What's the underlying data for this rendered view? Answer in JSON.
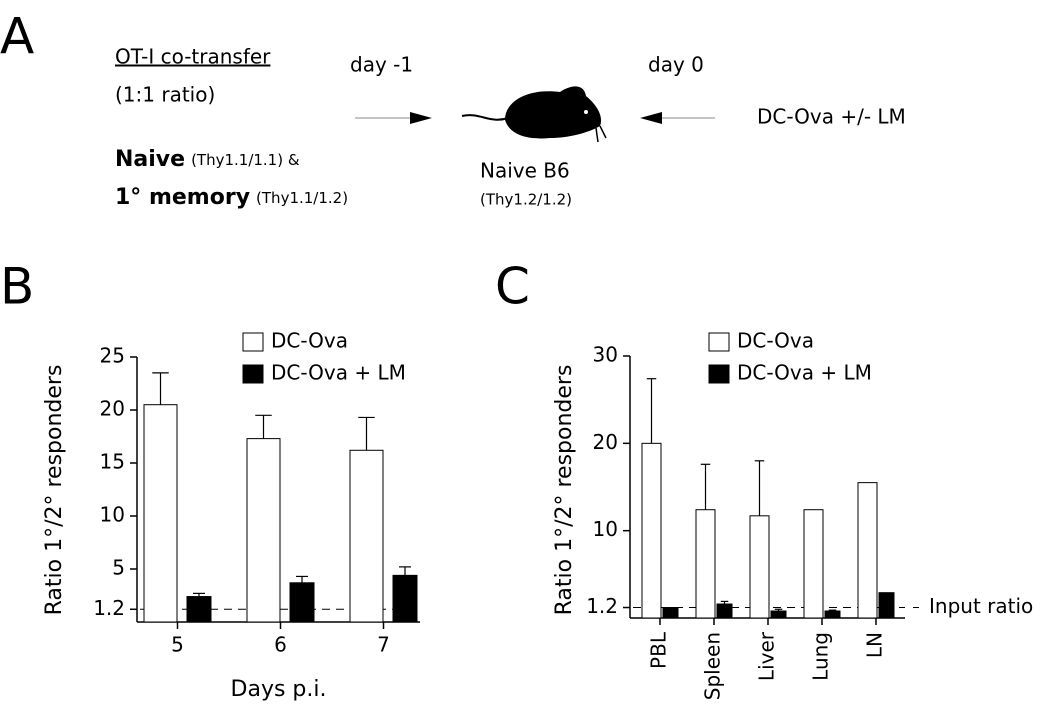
{
  "diagram": {
    "panels": [
      "A",
      "B",
      "C"
    ],
    "protocol_title": "OT-I co-transfer",
    "ratio": "(1:1 ratio)",
    "naive": "Naive",
    "naive_thy": "(Thy1.1/1.1) &",
    "memory": "1° memory",
    "memory_thy": "(Thy1.1/1.2)",
    "day_before": "day -1",
    "day_of": "day 0",
    "host": "Naive B6",
    "host_thy": "(Thy1.2/1.2)",
    "challenge": "DC-Ova +/- LM"
  },
  "chart_data": [
    {
      "type": "bar",
      "ylabel": "Ratio 1°/2° responders",
      "xlabel": "Days p.i.",
      "categories": [
        "5",
        "6",
        "7"
      ],
      "series": [
        {
          "name": "DC-Ova",
          "color": "#ffffff",
          "values": [
            20.5,
            17.3,
            16.2
          ],
          "errors": [
            3,
            2.2,
            3.1
          ]
        },
        {
          "name": "DC-Ova + LM",
          "color": "#000000",
          "values": [
            2.4,
            3.7,
            4.4
          ],
          "errors": [
            0.3,
            0.6,
            0.8
          ]
        }
      ],
      "ylim": [
        0,
        25
      ],
      "yticks": [
        1.2,
        5,
        10,
        15,
        20,
        25
      ],
      "reference_line": 1.2,
      "legend": "top-right"
    },
    {
      "type": "bar",
      "ylabel": "Ratio 1°/2° responders",
      "categories": [
        "PBL",
        "Spleen",
        "Liver",
        "Lung",
        "LN"
      ],
      "series": [
        {
          "name": "DC-Ova",
          "color": "#ffffff",
          "values": [
            20,
            12.4,
            11.7,
            12.4,
            15.5
          ],
          "errors": [
            7.4,
            5.2,
            6.3,
            null,
            null
          ]
        },
        {
          "name": "DC-Ova + LM",
          "color": "#000000",
          "values": [
            1.2,
            1.6,
            0.8,
            0.8,
            2.9
          ],
          "errors": [
            null,
            0.3,
            0.2,
            0.1,
            null
          ]
        }
      ],
      "ylim": [
        0,
        30
      ],
      "yticks": [
        1.2,
        10,
        20,
        30
      ],
      "reference_line": 1.2,
      "annotation": "Input ratio",
      "legend": "top-right"
    }
  ]
}
